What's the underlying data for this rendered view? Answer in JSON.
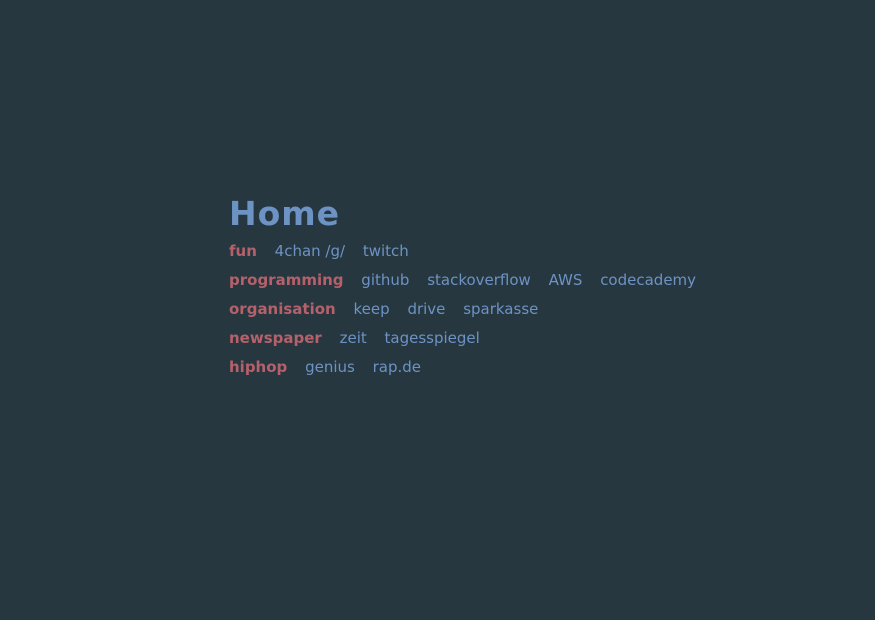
{
  "title": "Home",
  "colors": {
    "background": "#263740",
    "title": "#6c93c4",
    "category": "#b5616b",
    "link": "#6c93c4"
  },
  "groups": [
    {
      "category": "fun",
      "links": [
        "4chan /g/",
        "twitch"
      ]
    },
    {
      "category": "programming",
      "links": [
        "github",
        "stackoverflow",
        "AWS",
        "codecademy"
      ]
    },
    {
      "category": "organisation",
      "links": [
        "keep",
        "drive",
        "sparkasse"
      ]
    },
    {
      "category": "newspaper",
      "links": [
        "zeit",
        "tagesspiegel"
      ]
    },
    {
      "category": "hiphop",
      "links": [
        "genius",
        "rap.de"
      ]
    }
  ]
}
